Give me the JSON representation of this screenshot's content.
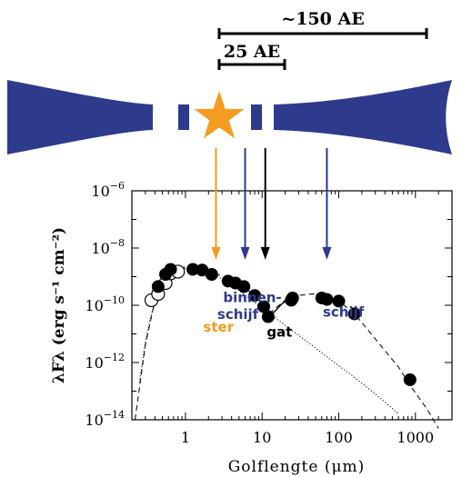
{
  "scale_bars": {
    "outer_label": "~150 AE",
    "inner_label": "25 AE"
  },
  "colors": {
    "disk": "#2e3a8c",
    "star": "#f39c1f",
    "gap_arrow": "#000000",
    "inner_arrow": "#2e3a8c",
    "outer_arrow": "#2e3a8c",
    "star_arrow": "#f39c1f"
  },
  "schematic": {
    "star_icon": "star-icon"
  },
  "chart_data": {
    "type": "scatter",
    "xscale": "log",
    "yscale": "log",
    "xlim": [
      0.2,
      3000
    ],
    "ylim": [
      1e-14,
      1e-06
    ],
    "xlabel": "Golflengte (μm)",
    "ylabel": "λFλ (erg s⁻¹ cm⁻²)",
    "x_ticks": [
      {
        "v": 1,
        "label": "1"
      },
      {
        "v": 10,
        "label": "10"
      },
      {
        "v": 100,
        "label": "100"
      },
      {
        "v": 1000,
        "label": "1000"
      }
    ],
    "y_ticks": [
      {
        "v": 1e-14,
        "base": "10",
        "exp": "−14"
      },
      {
        "v": 1e-12,
        "base": "10",
        "exp": "−12"
      },
      {
        "v": 1e-10,
        "base": "10",
        "exp": "−10"
      },
      {
        "v": 1e-08,
        "base": "10",
        "exp": "−8"
      },
      {
        "v": 1e-06,
        "base": "10",
        "exp": "−6"
      }
    ],
    "annotations": [
      {
        "text": "ster",
        "color": "#f39c1f",
        "x": 1.7,
        "y": 1.2e-11
      },
      {
        "text": "binnen-",
        "color": "#2e3a8c",
        "x": 3.1,
        "y": 1.3e-10
      },
      {
        "text": "schijf",
        "color": "#2e3a8c",
        "x": 2.6,
        "y": 3.3e-11
      },
      {
        "text": "gat",
        "color": "#000000",
        "x": 11.5,
        "y": 8e-12
      },
      {
        "text": "schijf",
        "color": "#2e3a8c",
        "x": 62,
        "y": 4e-11
      }
    ],
    "arrows": [
      {
        "x": 2.5,
        "color": "#f39c1f",
        "y_end": 4.5e-09
      },
      {
        "x": 6,
        "color": "#2e3a8c",
        "y_end": 4.5e-09
      },
      {
        "x": 11,
        "color": "#000000",
        "y_end": 4.5e-09
      },
      {
        "x": 70,
        "color": "#2e3a8c",
        "y_end": 4.5e-09
      }
    ],
    "series": [
      {
        "kind": "filled",
        "points": [
          [
            0.44,
            4.5e-10
          ],
          [
            0.55,
            1.2e-09
          ],
          [
            0.64,
            1.8e-09
          ],
          [
            1.25,
            1.8e-09
          ],
          [
            1.65,
            1.7e-09
          ],
          [
            2.2,
            1.2e-09
          ],
          [
            3.6,
            7e-10
          ],
          [
            4.5,
            6e-10
          ],
          [
            5.8,
            4.5e-10
          ],
          [
            8.0,
            2.2e-10
          ],
          [
            10.5,
            9e-11
          ],
          [
            12,
            4e-11
          ],
          [
            24,
            1.5e-10
          ],
          [
            25,
            1.8e-10
          ],
          [
            60,
            1.8e-10
          ],
          [
            70,
            1.6e-10
          ],
          [
            100,
            1.4e-10
          ],
          [
            160,
            5e-11
          ],
          [
            850,
            2.5e-13
          ]
        ]
      },
      {
        "kind": "open",
        "points": [
          [
            0.36,
            1.5e-10
          ],
          [
            0.44,
            2.5e-10
          ],
          [
            0.55,
            6e-10
          ],
          [
            0.64,
            1.3e-09
          ],
          [
            0.8,
            1.5e-09
          ]
        ]
      },
      {
        "kind": "star_model_dotted",
        "points": [
          [
            0.25,
            2e-13
          ],
          [
            0.3,
            5e-12
          ],
          [
            0.35,
            4e-11
          ],
          [
            0.45,
            3e-10
          ],
          [
            0.6,
            1.1e-09
          ],
          [
            0.8,
            1.8e-09
          ],
          [
            1.1,
            2e-09
          ],
          [
            1.6,
            1.7e-09
          ],
          [
            2.5,
            1.1e-09
          ],
          [
            4,
            5e-10
          ],
          [
            6,
            2.3e-10
          ],
          [
            10,
            8e-11
          ],
          [
            20,
            2e-11
          ],
          [
            40,
            5e-12
          ],
          [
            80,
            1.2e-12
          ],
          [
            150,
            3.5e-13
          ],
          [
            300,
            8e-14
          ],
          [
            500,
            2.5e-14
          ],
          [
            600,
            1.6e-14
          ]
        ]
      },
      {
        "kind": "total_model_dashed",
        "points": [
          [
            0.22,
            1e-14
          ],
          [
            0.3,
            4e-12
          ],
          [
            0.4,
            1.5e-10
          ],
          [
            0.55,
            9e-10
          ],
          [
            0.7,
            1.7e-09
          ],
          [
            1,
            2.2e-09
          ],
          [
            1.5,
            2e-09
          ],
          [
            2.5,
            1.3e-09
          ],
          [
            4,
            7e-10
          ],
          [
            6,
            4e-10
          ],
          [
            8,
            2.2e-10
          ],
          [
            10,
            1e-10
          ],
          [
            11,
            4.5e-11
          ],
          [
            12.5,
            5e-11
          ],
          [
            15,
            8e-11
          ],
          [
            20,
            1.5e-10
          ],
          [
            30,
            2.2e-10
          ],
          [
            45,
            2.5e-10
          ],
          [
            70,
            2.2e-10
          ],
          [
            100,
            1.4e-10
          ],
          [
            150,
            6e-11
          ],
          [
            200,
            2.5e-11
          ],
          [
            350,
            4e-12
          ],
          [
            600,
            7e-13
          ],
          [
            900,
            1.3e-13
          ],
          [
            1400,
            2.5e-14
          ],
          [
            2000,
            5e-15
          ]
        ]
      },
      {
        "kind": "model_solid_segment",
        "points": [
          [
            11,
            4e-11
          ],
          [
            13,
            4.5e-11
          ],
          [
            15,
            6.5e-11
          ],
          [
            18,
            1.1e-10
          ],
          [
            22,
            1.6e-10
          ]
        ]
      }
    ]
  }
}
